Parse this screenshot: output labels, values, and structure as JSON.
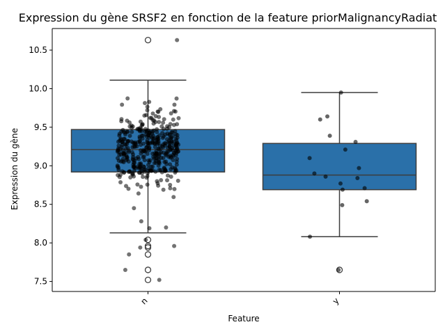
{
  "chart_data": {
    "type": "box",
    "title": "Expression du gène SRSF2 en fonction de la feature priorMalignancyRadiat",
    "xlabel": "Feature",
    "ylabel": "Expression du gène",
    "ylim": [
      7.37,
      10.78
    ],
    "yticks": [
      7.5,
      8.0,
      8.5,
      9.0,
      9.5,
      10.0,
      10.5
    ],
    "ytick_labels": [
      "7.5",
      "8.0",
      "8.5",
      "9.0",
      "9.5",
      "10.0",
      "10.5"
    ],
    "categories": [
      "n",
      "y"
    ],
    "box_color": "#2a70a9",
    "boxes": [
      {
        "category": "n",
        "q1": 8.92,
        "median": 9.21,
        "q3": 9.47,
        "whisker_low": 8.13,
        "whisker_high": 10.11,
        "outliers": [
          10.63,
          8.04,
          7.96,
          7.94,
          7.85,
          7.65,
          7.52
        ]
      },
      {
        "category": "y",
        "q1": 8.69,
        "median": 8.88,
        "q3": 9.29,
        "whisker_low": 8.08,
        "whisker_high": 9.95,
        "outliers": [
          7.65
        ]
      }
    ],
    "points": {
      "n_count": 420,
      "y": [
        9.95,
        9.64,
        9.6,
        9.39,
        9.31,
        9.21,
        9.1,
        8.97,
        8.9,
        8.86,
        8.84,
        8.77,
        8.71,
        8.69,
        8.54,
        8.49,
        8.08,
        7.65
      ]
    },
    "grid": false,
    "legend": "none"
  }
}
